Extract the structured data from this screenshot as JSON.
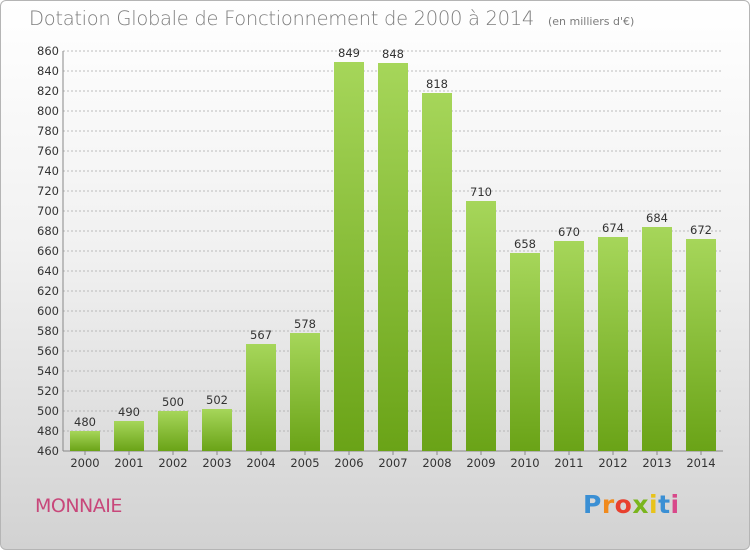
{
  "title": "Dotation Globale de Fonctionnement de 2000 à 2014",
  "unit_note": "(en milliers d'€)",
  "commune": "MONNAIE",
  "logo": {
    "text": "Proxiti",
    "letter_colors": [
      "#3a8fd4",
      "#f08a1c",
      "#e8402e",
      "#7ab51d",
      "#e8c31a",
      "#3a8fd4",
      "#d8488a"
    ]
  },
  "colors": {
    "bar_light": "#a6d65a",
    "bar_dark": "#6aa317",
    "grid": "#a8a8a8",
    "axis_text": "#333333",
    "title": "#7c7c7c",
    "commune": "#c8477a"
  },
  "chart_data": {
    "type": "bar",
    "categories": [
      "2000",
      "2001",
      "2002",
      "2003",
      "2004",
      "2005",
      "2006",
      "2007",
      "2008",
      "2009",
      "2010",
      "2011",
      "2012",
      "2013",
      "2014"
    ],
    "values": [
      480,
      490,
      500,
      502,
      567,
      578,
      849,
      848,
      818,
      710,
      658,
      670,
      674,
      684,
      672
    ],
    "ylim": [
      460,
      860
    ],
    "yticks": [
      460,
      480,
      500,
      520,
      540,
      560,
      580,
      600,
      620,
      640,
      660,
      680,
      700,
      720,
      740,
      760,
      780,
      800,
      820,
      840,
      860
    ],
    "grid": true,
    "data_labels": true
  }
}
